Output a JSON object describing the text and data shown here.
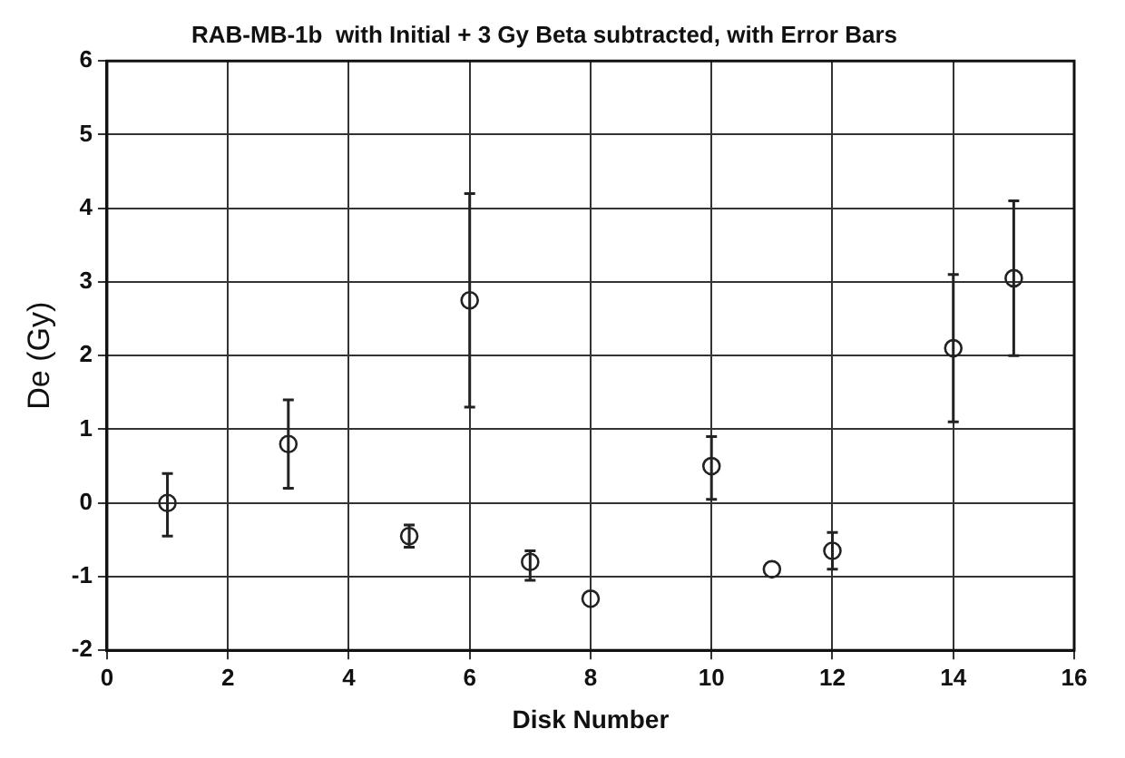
{
  "chart_data": {
    "type": "scatter",
    "title": "RAB-MB-1b  with Initial + 3 Gy Beta subtracted, with Error Bars",
    "xlabel": "Disk Number",
    "ylabel": "De (Gy)",
    "x": [
      1,
      3,
      5,
      6,
      7,
      8,
      10,
      11,
      12,
      14,
      15
    ],
    "values": [
      0,
      0.8,
      -0.45,
      2.75,
      -0.8,
      -1.3,
      0.5,
      -0.9,
      -0.65,
      2.1,
      3.05
    ],
    "errors": [
      [
        -0.45,
        0.4
      ],
      [
        0.2,
        1.4
      ],
      [
        -0.6,
        -0.3
      ],
      [
        1.3,
        4.2
      ],
      [
        -1.05,
        -0.65
      ],
      null,
      [
        0.05,
        0.9
      ],
      null,
      [
        -0.9,
        -0.4
      ],
      [
        1.1,
        3.1
      ],
      [
        2,
        4.1
      ]
    ],
    "color": "#222222",
    "marker": "circle",
    "xlim": [
      0,
      16
    ],
    "xticks": [
      0,
      2,
      4,
      6,
      8,
      10,
      12,
      14,
      16
    ],
    "ylim": [
      -2,
      6
    ],
    "yticks": [
      -2,
      -1,
      0,
      1,
      2,
      3,
      4,
      5,
      6
    ],
    "grid": true,
    "legend": false
  }
}
